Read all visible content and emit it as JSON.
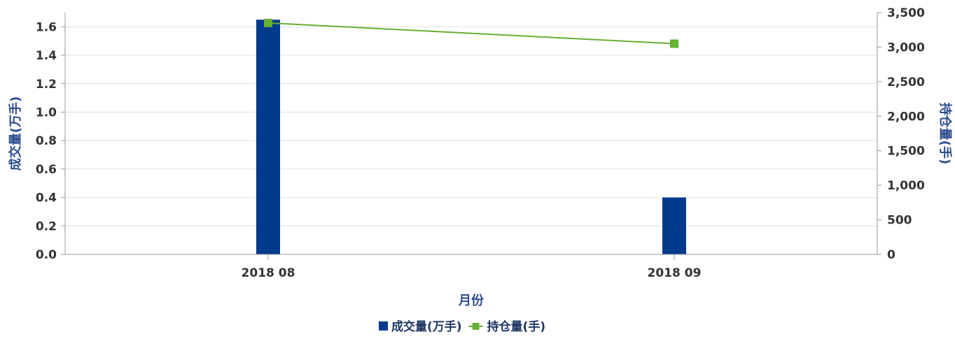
{
  "chart_data": {
    "type": "bar",
    "categories": [
      "2018 08",
      "2018 09"
    ],
    "xlabel": "月份",
    "ylabel": "成交量(万手)",
    "y2label": "持仓量(手)",
    "ylim": [
      0,
      1.7
    ],
    "y_ticks": [
      0.0,
      0.2,
      0.4,
      0.6,
      0.8,
      1.0,
      1.2,
      1.4,
      1.6
    ],
    "y_tick_labels": [
      "0.0",
      "0.2",
      "0.4",
      "0.6",
      "0.8",
      "1.0",
      "1.2",
      "1.4",
      "1.6"
    ],
    "y2lim": [
      0,
      3500
    ],
    "y2_ticks": [
      0,
      500,
      1000,
      1500,
      2000,
      2500,
      3000,
      3500
    ],
    "y2_tick_labels": [
      "0",
      "500",
      "1,000",
      "1,500",
      "2,000",
      "2,500",
      "3,000",
      "3,500"
    ],
    "grid": true,
    "legend_position": "bottom-center",
    "series": [
      {
        "name": "成交量(万手)",
        "type": "bar",
        "axis": "left",
        "color": "#003a8c",
        "values": [
          1.65,
          0.4
        ]
      },
      {
        "name": "持仓量(手)",
        "type": "line",
        "axis": "right",
        "color": "#66b032",
        "values": [
          3350,
          3050
        ]
      }
    ]
  }
}
